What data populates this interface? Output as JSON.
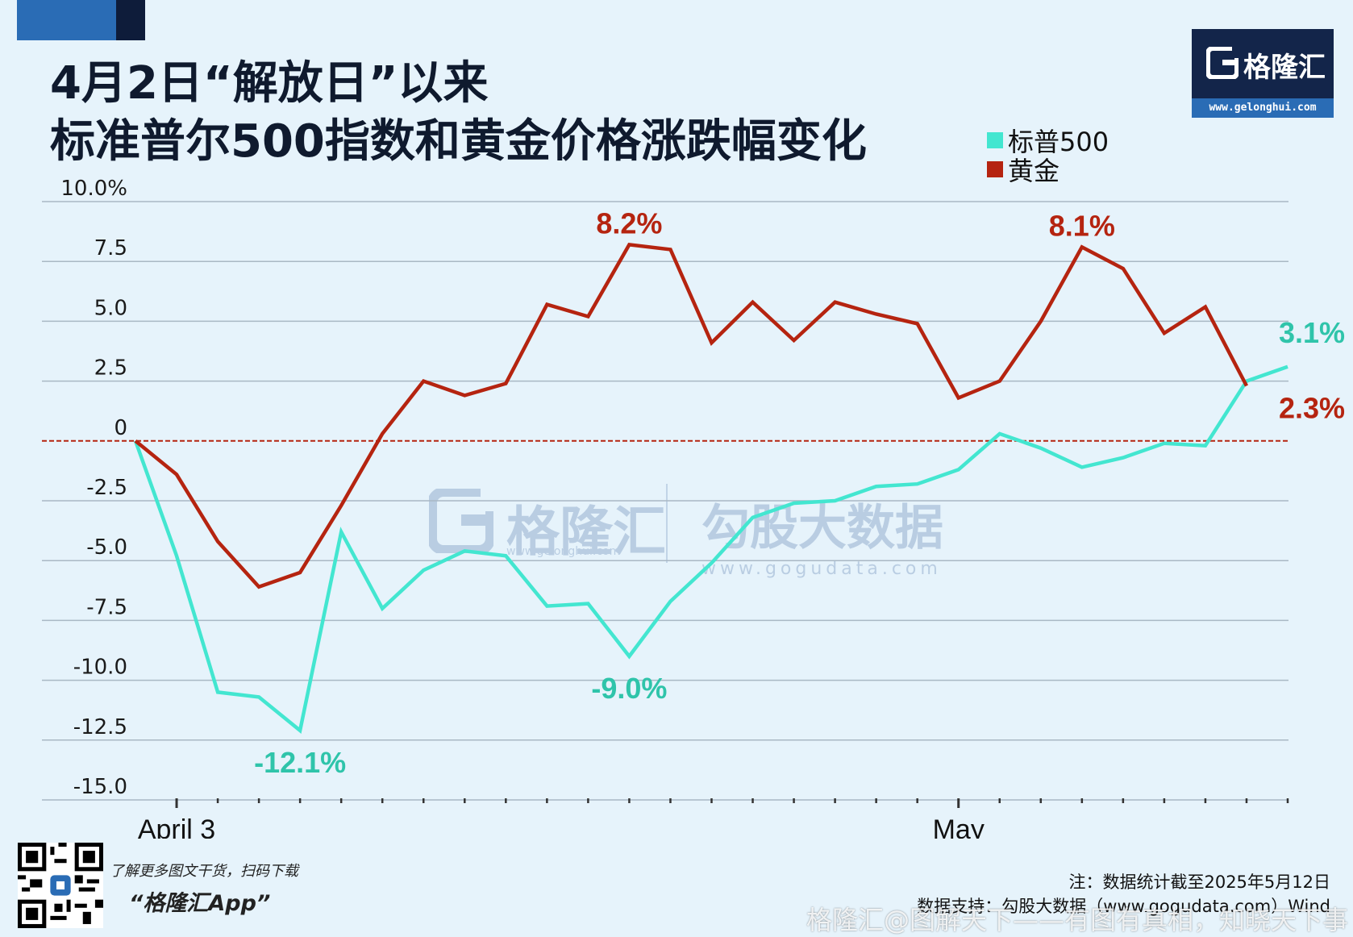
{
  "header": {
    "title_line1": "4月2日“解放日”以来",
    "title_line2": "标准普尔500指数和黄金价格涨跌幅变化"
  },
  "logo": {
    "name": "格隆汇",
    "url": "www.gelonghui.com"
  },
  "watermarks": {
    "brand_name": "格隆汇",
    "brand_url": "www.gelonghui.com",
    "data_name": "勾股大数据",
    "data_url": "www.gogudata.com"
  },
  "chart_data": {
    "type": "line",
    "title": "4月2日“解放日”以来 标准普尔500指数和黄金价格涨跌幅变化",
    "ylim": [
      -15,
      10
    ],
    "y_ticks": [
      "10.0%",
      "7.5",
      "5.0",
      "2.5",
      "0",
      "-2.5",
      "-5.0",
      "-7.5",
      "-10.0",
      "-12.5",
      "-15.0"
    ],
    "x_tick_labels": [
      "April 3",
      "May"
    ],
    "x_label_index": [
      1,
      20
    ],
    "x_count": 29,
    "grid": true,
    "legend": "top-right",
    "colors": {
      "sp500": "#43e6d0",
      "gold": "#b52410",
      "zero_line": "#b52410"
    },
    "series": [
      {
        "name": "标普500",
        "values": [
          0,
          -4.8,
          -10.5,
          -10.7,
          -12.1,
          -3.8,
          -7.0,
          -5.4,
          -4.6,
          -4.8,
          -6.9,
          -6.8,
          -9.0,
          -6.7,
          -5.1,
          -3.2,
          -2.6,
          -2.5,
          -1.9,
          -1.8,
          -1.2,
          0.3,
          -0.3,
          -1.1,
          -0.7,
          -0.1,
          -0.2,
          2.5,
          3.1
        ]
      },
      {
        "name": "黄金",
        "values": [
          0,
          -1.4,
          -4.2,
          -6.1,
          -5.5,
          -2.7,
          0.3,
          2.5,
          1.9,
          2.4,
          5.7,
          5.2,
          8.2,
          8.0,
          4.1,
          5.8,
          4.2,
          5.8,
          5.3,
          4.9,
          1.8,
          2.5,
          5.0,
          8.1,
          7.2,
          4.5,
          5.6,
          2.3
        ]
      }
    ],
    "annotations": [
      {
        "text": "8.2%",
        "series": "黄金",
        "index": 12,
        "pos": "above"
      },
      {
        "text": "8.1%",
        "series": "黄金",
        "index": 23,
        "pos": "above"
      },
      {
        "text": "2.3%",
        "series": "黄金",
        "index": 27,
        "pos": "right-below"
      },
      {
        "text": "3.1%",
        "series": "标普500",
        "index": 28,
        "pos": "right-above"
      },
      {
        "text": "-12.1%",
        "series": "标普500",
        "index": 4,
        "pos": "below"
      },
      {
        "text": "-9.0%",
        "series": "标普500",
        "index": 12,
        "pos": "below"
      }
    ]
  },
  "footer": {
    "qr_caption": "了解更多图文干货，扫码下载",
    "app_name": "“格隆汇App”",
    "note": "注：数据统计截至2025年5月12日",
    "source": "数据支持：勾股大数据（www.gogudata.com）Wind",
    "weibo_watermark": "格隆汇@图解天下——有图有真相，知晓天下事"
  }
}
